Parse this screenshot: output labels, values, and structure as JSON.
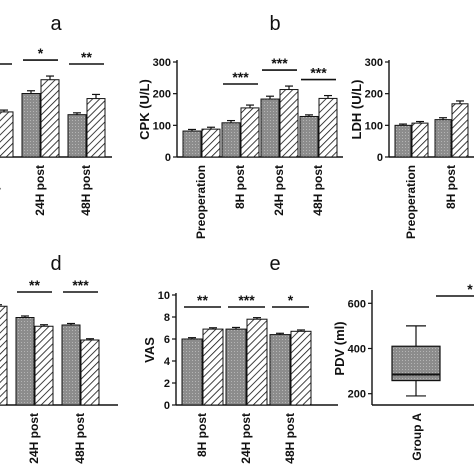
{
  "colors": {
    "group_a": "#8c8c8c",
    "group_b": "#ffffff",
    "ink": "#111111"
  },
  "chart_data": [
    {
      "id": "a",
      "panel_label": "a",
      "type": "bar",
      "ylabel": "",
      "ylim": [
        0,
        250
      ],
      "yticks": [],
      "categories": [
        "...H post",
        "24H post",
        "48H post"
      ],
      "series": [
        {
          "values": [
            78,
            138,
            92
          ],
          "errors": [
            3,
            6,
            4
          ]
        },
        {
          "values": [
            98,
            168,
            127
          ],
          "errors": [
            4,
            8,
            9
          ]
        }
      ],
      "significance": [
        "**",
        "*",
        "**"
      ]
    },
    {
      "id": "b",
      "panel_label": "b",
      "type": "bar",
      "ylabel": "CPK (U/L)",
      "ylim": [
        0,
        300
      ],
      "yticks": [
        0,
        100,
        200,
        300
      ],
      "categories": [
        "Preoperation",
        "8H post",
        "24H post",
        "48H post"
      ],
      "series": [
        {
          "values": [
            82,
            108,
            183,
            128
          ],
          "errors": [
            5,
            7,
            9,
            5
          ]
        },
        {
          "values": [
            88,
            155,
            213,
            185
          ],
          "errors": [
            6,
            9,
            11,
            9
          ]
        }
      ],
      "significance": [
        "",
        "***",
        "***",
        "***"
      ]
    },
    {
      "id": "c",
      "panel_label": "",
      "type": "bar",
      "ylabel": "LDH (U/L)",
      "ylim": [
        0,
        300
      ],
      "yticks": [
        0,
        100,
        200,
        300
      ],
      "categories": [
        "Preoperation",
        "8H post",
        "24H post"
      ],
      "series": [
        {
          "values": [
            100,
            118,
            0
          ],
          "errors": [
            4,
            6,
            0
          ]
        },
        {
          "values": [
            107,
            168,
            0
          ],
          "errors": [
            5,
            9,
            0
          ]
        }
      ],
      "significance": [
        "",
        "",
        "**"
      ]
    },
    {
      "id": "d",
      "panel_label": "d",
      "type": "bar",
      "ylabel": "",
      "ylim": [
        0,
        10
      ],
      "yticks": [],
      "categories": [
        "...H post",
        "24H post",
        "48H post"
      ],
      "series": [
        {
          "values": [
            8.3,
            7.0,
            6.4
          ],
          "errors": [
            0.1,
            0.12,
            0.12
          ]
        },
        {
          "values": [
            7.9,
            6.3,
            5.2
          ],
          "errors": [
            0.12,
            0.12,
            0.1
          ]
        }
      ],
      "significance": [
        "",
        "**",
        "***"
      ]
    },
    {
      "id": "e",
      "panel_label": "e",
      "type": "bar",
      "ylabel": "VAS",
      "ylim": [
        0,
        10
      ],
      "yticks": [
        0,
        2,
        4,
        6,
        8,
        10
      ],
      "categories": [
        "8H post",
        "24H post",
        "48H post"
      ],
      "series": [
        {
          "values": [
            6.0,
            6.9,
            6.4
          ],
          "errors": [
            0.12,
            0.15,
            0.12
          ]
        },
        {
          "values": [
            6.9,
            7.8,
            6.7
          ],
          "errors": [
            0.12,
            0.14,
            0.12
          ]
        }
      ],
      "significance": [
        "**",
        "***",
        "*"
      ]
    },
    {
      "id": "f",
      "panel_label": "",
      "type": "box",
      "ylabel": "PDV (ml)",
      "ylim": [
        150,
        650
      ],
      "yticks": [
        200,
        400,
        600
      ],
      "categories": [
        "Group A"
      ],
      "boxes": [
        {
          "min": 190,
          "q1": 258,
          "median": 285,
          "q3": 410,
          "max": 500
        }
      ],
      "significance": [
        "*"
      ]
    }
  ]
}
